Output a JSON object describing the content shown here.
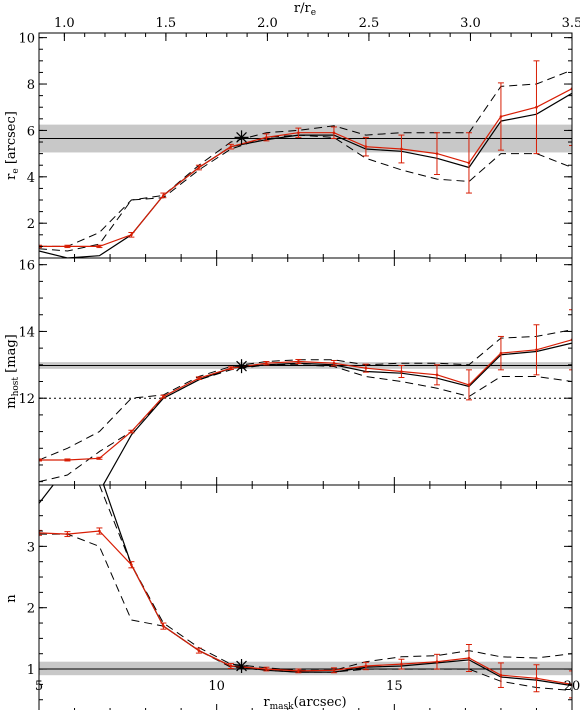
{
  "colors": {
    "band": "#c8c8c8",
    "red": "#d81e05",
    "black": "#000000"
  },
  "chart_data": {
    "type": "line",
    "xlabel_main": "r",
    "xlabel_sub": "mask",
    "xlabel_tail": "(arcsec)",
    "xlim": [
      5,
      20
    ],
    "x_ticks": [
      5,
      10,
      15,
      20
    ],
    "x_tick_labels": [
      "5",
      "10",
      "15",
      "20"
    ],
    "top_axis": {
      "label_main": "r/r",
      "label_sub": "e",
      "ticks": [
        1.0,
        1.5,
        2.0,
        2.5,
        3.0,
        3.5
      ],
      "tick_labels": [
        "1.0",
        "1.5",
        "2.0",
        "2.5",
        "3.0",
        "3.5"
      ],
      "x_per_unit": 5.714
    },
    "x": [
      5.0,
      5.8,
      6.7,
      7.6,
      8.5,
      9.5,
      10.4,
      11.4,
      12.3,
      13.3,
      14.2,
      15.2,
      16.2,
      17.1,
      18.0,
      19.0,
      20.0
    ],
    "panels": [
      {
        "id": "re",
        "ylabel_main": "r",
        "ylabel_sub": "e",
        "ylabel_tail": " [arcsec]",
        "ylim": [
          0.5,
          10.2
        ],
        "y_ticks": [
          2,
          4,
          6,
          8,
          10
        ],
        "y_tick_labels": [
          "2",
          "4",
          "6",
          "8",
          "10"
        ],
        "band": [
          5.05,
          6.25
        ],
        "hline": 5.65,
        "dotted_line": null,
        "star": {
          "x": 10.7,
          "y": 5.7
        },
        "series_red": [
          1.0,
          1.0,
          1.0,
          1.5,
          3.2,
          4.4,
          5.3,
          5.7,
          5.9,
          5.9,
          5.3,
          5.2,
          5.0,
          4.6,
          6.6,
          7.0,
          7.8
        ],
        "errors_red": [
          0.05,
          0.05,
          0.05,
          0.1,
          0.1,
          0.1,
          0.1,
          0.15,
          0.2,
          0.25,
          0.4,
          0.6,
          0.9,
          1.3,
          1.45,
          2.0,
          2.45
        ],
        "series_black": [
          0.8,
          0.5,
          0.6,
          1.5,
          3.2,
          4.4,
          5.3,
          5.6,
          5.8,
          5.8,
          5.2,
          5.1,
          4.8,
          4.4,
          6.4,
          6.7,
          7.6
        ],
        "series_dash_upper": [
          1.0,
          1.0,
          1.6,
          3.0,
          3.2,
          4.5,
          5.5,
          5.9,
          6.0,
          6.2,
          5.8,
          5.9,
          5.9,
          5.9,
          7.9,
          8.0,
          8.6
        ],
        "series_dash_lower": [
          0.9,
          0.8,
          1.1,
          3.0,
          3.1,
          4.3,
          5.2,
          5.7,
          5.8,
          5.7,
          4.8,
          4.3,
          3.9,
          3.8,
          5.0,
          5.0,
          4.4
        ]
      },
      {
        "id": "mhost",
        "ylabel_main": "m",
        "ylabel_sub": "host",
        "ylabel_tail": " [mag]",
        "ylim": [
          9.4,
          16.2
        ],
        "y_ticks": [
          12,
          14,
          16
        ],
        "y_tick_labels": [
          "12",
          "14",
          "16"
        ],
        "band": [
          12.88,
          13.08
        ],
        "hline": 12.98,
        "dotted_line": 12.0,
        "star": {
          "x": 10.7,
          "y": 12.96
        },
        "series_red": [
          10.15,
          10.15,
          10.2,
          11.0,
          12.05,
          12.6,
          12.9,
          13.05,
          13.1,
          13.05,
          12.9,
          12.8,
          12.7,
          12.4,
          13.35,
          13.45,
          13.75
        ],
        "errors_red": [
          0.03,
          0.03,
          0.03,
          0.04,
          0.04,
          0.04,
          0.04,
          0.05,
          0.06,
          0.08,
          0.12,
          0.18,
          0.3,
          0.45,
          0.5,
          0.75,
          0.9
        ],
        "series_black": [
          9.0,
          9.0,
          9.2,
          10.9,
          12.0,
          12.55,
          12.9,
          13.0,
          13.05,
          13.0,
          12.8,
          12.75,
          12.6,
          12.35,
          13.3,
          13.4,
          13.65
        ],
        "series_dash_upper": [
          10.15,
          10.5,
          11.0,
          12.0,
          12.1,
          12.65,
          12.95,
          13.1,
          13.15,
          13.15,
          13.0,
          13.05,
          13.05,
          13.0,
          13.8,
          13.85,
          14.05
        ],
        "series_dash_lower": [
          9.5,
          9.7,
          10.4,
          11.0,
          12.0,
          12.55,
          12.85,
          13.0,
          13.0,
          12.95,
          12.65,
          12.5,
          12.3,
          12.05,
          12.65,
          12.65,
          12.5
        ]
      },
      {
        "id": "n",
        "ylabel_main": "n",
        "ylabel_sub": "",
        "ylabel_tail": "",
        "ylim": [
          0.3,
          4.0
        ],
        "y_ticks": [
          1,
          2,
          3,
          4
        ],
        "y_tick_labels": [
          "1",
          "2",
          "3",
          "4"
        ],
        "band": [
          0.9,
          1.12
        ],
        "hline": 1.0,
        "dotted_line": null,
        "star": {
          "x": 10.7,
          "y": 1.05
        },
        "series_red": [
          3.22,
          3.2,
          3.25,
          2.7,
          1.7,
          1.3,
          1.05,
          1.0,
          0.97,
          0.98,
          1.05,
          1.08,
          1.12,
          1.18,
          0.9,
          0.85,
          0.75
        ],
        "errors_red": [
          0.04,
          0.04,
          0.05,
          0.05,
          0.05,
          0.04,
          0.04,
          0.03,
          0.03,
          0.04,
          0.06,
          0.08,
          0.12,
          0.22,
          0.2,
          0.22,
          0.22
        ],
        "series_black": [
          3.7,
          4.3,
          4.2,
          2.7,
          1.7,
          1.3,
          1.05,
          0.98,
          0.95,
          0.95,
          1.03,
          1.05,
          1.1,
          1.15,
          0.87,
          0.82,
          0.73
        ],
        "series_dash_upper": [
          4.0,
          4.2,
          4.0,
          2.7,
          1.75,
          1.35,
          1.08,
          1.02,
          0.98,
          0.98,
          1.12,
          1.2,
          1.22,
          1.3,
          1.2,
          1.18,
          1.25
        ],
        "series_dash_lower": [
          3.2,
          3.2,
          3.0,
          1.8,
          1.7,
          1.3,
          1.03,
          0.98,
          0.95,
          0.95,
          1.0,
          1.0,
          1.0,
          1.0,
          0.8,
          0.7,
          0.65
        ]
      }
    ]
  }
}
